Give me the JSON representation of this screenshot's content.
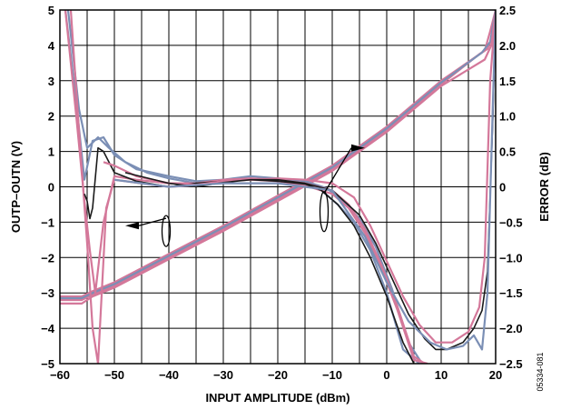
{
  "chart_data": {
    "type": "line",
    "title": "",
    "xlabel": "INPUT AMPLITUDE (dBm)",
    "ylabel_left": "OUTP–OUTN (V)",
    "ylabel_right": "ERROR (dB)",
    "figure_id": "05334-081",
    "xlim": [
      -60,
      20
    ],
    "ylim_left": [
      -5,
      5
    ],
    "ylim_right": [
      -2.5,
      2.5
    ],
    "grid": true,
    "x_ticks": [
      "−60",
      "−50",
      "−40",
      "−30",
      "−20",
      "−10",
      "0",
      "10",
      "20"
    ],
    "x_tick_values": [
      -60,
      -50,
      -40,
      -30,
      -20,
      -10,
      0,
      10,
      20
    ],
    "y_left_ticks": [
      "5",
      "4",
      "3",
      "2",
      "1",
      "0",
      "−1",
      "−2",
      "−3",
      "−4",
      "−5"
    ],
    "y_left_tick_values": [
      5,
      4,
      3,
      2,
      1,
      0,
      -1,
      -2,
      -3,
      -4,
      -5
    ],
    "y_right_ticks": [
      "2.5",
      "2.0",
      "1.5",
      "1.0",
      "0.5",
      "0",
      "−0.5",
      "−1.0",
      "−1.5",
      "−2.0",
      "−2.5"
    ],
    "y_right_tick_values": [
      2.5,
      2.0,
      1.5,
      1.0,
      0.5,
      0,
      -0.5,
      -1.0,
      -1.5,
      -2.0,
      -2.5
    ],
    "colors": {
      "pink": "#d4789a",
      "blue": "#7b8fb5",
      "black": "#1a1a1a",
      "grid": "#000000"
    },
    "output_series": [
      {
        "axis": "left",
        "color": "pink",
        "x": [
          -60,
          -56,
          -54,
          -50,
          -40,
          -30,
          -20,
          -10,
          0,
          10,
          17,
          18.5,
          19.5,
          20
        ],
        "y": [
          -3.2,
          -3.2,
          -3.05,
          -2.8,
          -2.0,
          -1.2,
          -0.35,
          0.5,
          1.6,
          2.9,
          3.75,
          3.9,
          4.3,
          5
        ]
      },
      {
        "axis": "left",
        "color": "pink",
        "x": [
          -60,
          -56,
          -54,
          -50,
          -40,
          -30,
          -20,
          -10,
          0,
          10,
          18,
          19,
          20
        ],
        "y": [
          -3.1,
          -3.1,
          -2.95,
          -2.7,
          -1.9,
          -1.1,
          -0.25,
          0.6,
          1.7,
          3.0,
          3.85,
          4.4,
          5
        ]
      },
      {
        "axis": "left",
        "color": "blue",
        "x": [
          -60,
          -56,
          -54,
          -50,
          -40,
          -30,
          -20,
          -10,
          0,
          10,
          17.5,
          19,
          20
        ],
        "y": [
          -3.15,
          -3.15,
          -3.0,
          -2.75,
          -1.95,
          -1.15,
          -0.3,
          0.55,
          1.65,
          2.95,
          3.8,
          4.1,
          5
        ]
      },
      {
        "axis": "left",
        "color": "pink",
        "x": [
          -60,
          -56,
          -54,
          -50,
          -40,
          -30,
          -20,
          -10,
          0,
          10,
          18,
          19.2,
          20
        ],
        "y": [
          -3.3,
          -3.3,
          -3.1,
          -2.85,
          -2.05,
          -1.25,
          -0.4,
          0.45,
          1.55,
          2.85,
          3.6,
          4.0,
          5
        ]
      }
    ],
    "error_series": [
      {
        "axis": "right",
        "color": "blue",
        "x": [
          -59,
          -57,
          -55.5,
          -54,
          -52,
          -50,
          -46,
          -40,
          -35,
          -30,
          -25,
          -20,
          -15,
          -12,
          -9,
          -6,
          -3,
          0,
          3,
          6
        ],
        "y": [
          2.5,
          1.2,
          0.1,
          0.65,
          0.7,
          0.45,
          0.25,
          0.15,
          0.08,
          0.1,
          0.12,
          0.1,
          0.05,
          -0.05,
          -0.25,
          -0.5,
          -0.9,
          -1.5,
          -2.3,
          -2.5
        ]
      },
      {
        "axis": "right",
        "color": "blue",
        "x": [
          -58.5,
          -56.5,
          -55,
          -53,
          -51,
          -48,
          -44,
          -40,
          -35,
          -30,
          -25,
          -20,
          -15,
          -11,
          -8,
          -5,
          -2,
          1,
          4,
          6.5
        ],
        "y": [
          2.5,
          1.1,
          0.55,
          0.7,
          0.55,
          0.35,
          0.2,
          0.12,
          0.05,
          0.1,
          0.15,
          0.12,
          0.08,
          -0.02,
          -0.2,
          -0.45,
          -0.85,
          -1.45,
          -2.2,
          -2.5
        ]
      },
      {
        "axis": "right",
        "color": "pink",
        "x": [
          -59,
          -57,
          -55.5,
          -54.5,
          -53.5,
          -52,
          -50,
          -46,
          -40,
          -35,
          -30,
          -25,
          -20,
          -15,
          -10,
          -7,
          -4,
          -1,
          2,
          5,
          7
        ],
        "y": [
          2.5,
          1.0,
          -0.2,
          -0.9,
          -1.5,
          -0.5,
          0.15,
          0.1,
          0.05,
          0.05,
          0.1,
          0.12,
          0.1,
          0.05,
          -0.05,
          -0.25,
          -0.6,
          -1.1,
          -1.7,
          -2.4,
          -2.5
        ]
      },
      {
        "axis": "right",
        "color": "pink",
        "x": [
          -58,
          -56.5,
          -55,
          -54,
          -53,
          -51.5,
          -50,
          -45,
          -40,
          -35,
          -30,
          -25,
          -20,
          -15,
          -10,
          -7,
          -4,
          -1,
          2,
          5,
          7.5
        ],
        "y": [
          2.5,
          0.8,
          -0.8,
          -2.0,
          -2.5,
          -0.3,
          0.1,
          0.05,
          0.0,
          0.02,
          0.08,
          0.1,
          0.08,
          0.02,
          -0.1,
          -0.3,
          -0.65,
          -1.15,
          -1.75,
          -2.45,
          -2.5
        ]
      },
      {
        "axis": "right",
        "color": "black",
        "x": [
          -55.5,
          -55,
          -54.5,
          -54,
          -53,
          -52,
          -51,
          -50,
          -46,
          -40,
          -35,
          -30,
          -25,
          -20,
          -15,
          -12,
          -9,
          -6,
          -3,
          0,
          3,
          5
        ],
        "y": [
          -0.1,
          -0.2,
          -0.45,
          -0.3,
          0.55,
          0.5,
          0.35,
          0.2,
          0.08,
          0.0,
          0.05,
          0.08,
          0.1,
          0.08,
          0.04,
          -0.05,
          -0.25,
          -0.55,
          -1.0,
          -1.55,
          -2.2,
          -2.5
        ]
      },
      {
        "axis": "right",
        "color": "pink",
        "x": [
          -52,
          -50,
          -46,
          -40,
          -35,
          -30,
          -25,
          -20,
          -15,
          -10,
          -6,
          -3,
          0,
          3,
          6,
          9,
          12,
          15,
          17,
          18,
          19,
          20
        ],
        "y": [
          0.35,
          0.3,
          0.15,
          0.05,
          0.03,
          0.08,
          0.1,
          0.12,
          0.1,
          0.05,
          -0.15,
          -0.55,
          -1.05,
          -1.55,
          -1.95,
          -2.2,
          -2.2,
          -2.05,
          -1.7,
          -1.0,
          1.5,
          2.5
        ]
      },
      {
        "axis": "right",
        "color": "black",
        "x": [
          -48,
          -40,
          -35,
          -30,
          -25,
          -20,
          -15,
          -10,
          -5,
          -2,
          1,
          4,
          7,
          9,
          11,
          14,
          16,
          17.5,
          18.5,
          19.5,
          20
        ],
        "y": [
          0.2,
          0.05,
          0.0,
          0.06,
          0.1,
          0.1,
          0.05,
          -0.05,
          -0.4,
          -0.8,
          -1.3,
          -1.8,
          -2.15,
          -2.3,
          -2.3,
          -2.2,
          -2.0,
          -1.75,
          -1.2,
          1.0,
          2.5
        ]
      },
      {
        "axis": "right",
        "color": "blue",
        "x": [
          -50,
          -40,
          -30,
          -20,
          -10,
          -4,
          0,
          4,
          8,
          11,
          14,
          16,
          17.5,
          18.5,
          19.5,
          20
        ],
        "y": [
          0.1,
          0.0,
          0.05,
          0.05,
          -0.05,
          -0.7,
          -1.35,
          -1.9,
          -2.2,
          -2.3,
          -2.25,
          -2.1,
          -2.3,
          -1.5,
          1.2,
          2.5
        ]
      }
    ],
    "annotations": [
      {
        "kind": "left-arrow",
        "points_to": "left axis"
      },
      {
        "kind": "right-arrow",
        "points_to": "right axis"
      }
    ]
  }
}
